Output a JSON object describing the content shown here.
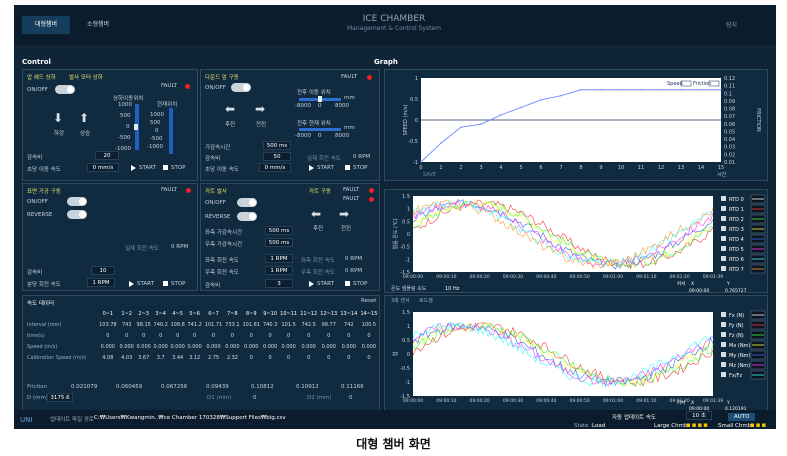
{
  "header": {
    "tabs": [
      "대형챔버",
      "소형챔버"
    ],
    "title": "ICE CHAMBER",
    "subtitle": "Management & Control System",
    "right": "탐지"
  },
  "sections": {
    "control": "Control",
    "graph": "Graph"
  },
  "p1": {
    "title_a": "압 헤드 상하",
    "title_b": "발사 모터 상하",
    "onoff": "ON/OFF",
    "fault": "FAULT",
    "bar_a": "상하이동위치",
    "bar_b": "현재위치",
    "ticks": [
      "1000",
      "500",
      "0",
      "-500",
      "-1000"
    ],
    "ticks_b": [
      "1000",
      "500",
      "0",
      "-500",
      "-1000"
    ],
    "down": "하강",
    "up": "상승",
    "accel_l": "감속비",
    "accel_v": "20",
    "speed_l": "초당 이동 속도",
    "speed_v": "0 mm/s",
    "start": "START",
    "stop": "STOP"
  },
  "p2": {
    "title": "다운드 암 구동",
    "onoff": "ON/OFF",
    "fault": "FAULT",
    "back": "후진",
    "fwd": "전진",
    "pos_l": "전후 이동 위치",
    "pos_ticks": [
      "-8000",
      "0",
      "8000"
    ],
    "unit": "mm",
    "cur_l": "전후 현재 위치",
    "cur_ticks": [
      "-8000",
      "0",
      "8000"
    ],
    "acc_l": "가감속시간",
    "acc_v": "500 ms",
    "ratio_l": "감속비",
    "ratio_v": "50",
    "speed_l": "초당 이동 속도",
    "speed_v": "0 mm/s",
    "rot_l": "실제 회전 속도",
    "rot_v": "0 RPM",
    "start": "START",
    "stop": "STOP"
  },
  "p3": {
    "title": "표면 가공 구동",
    "fault": "FAULT",
    "onoff": "ON/OFF",
    "reverse": "REVERSE",
    "real_l": "실제 회전 속도",
    "real_v": "0 RPM",
    "ratio_l": "감속비",
    "ratio_v": "10",
    "rpm_l": "분당 회전 속도",
    "rpm_v": "1 RPM",
    "start": "START",
    "stop": "STOP"
  },
  "p4": {
    "title": "카트 발사",
    "title2": "카트 구동",
    "fault1": "FAULT",
    "fault2": "FAULT",
    "onoff": "ON/OFF",
    "reverse": "REVERSE",
    "l_acc_l": "좌측 가감속시간",
    "l_acc_v": "500 ms",
    "r_acc_l": "우측 가감속시간",
    "r_acc_v": "500 ms",
    "back": "후진",
    "fwd": "전진",
    "l_rpm_l": "좌측 회전 속도",
    "l_rpm_v": "1 RPM",
    "l_real_l": "좌측 회전 속도",
    "l_real_v": "0 RPM",
    "r_rpm_l": "우측 회전 속도",
    "r_rpm_v": "1 RPM",
    "r_real_l": "우측 회전 속도",
    "r_real_v": "0 RPM",
    "ratio_l": "감속비",
    "ratio_v": "3",
    "start": "START",
    "stop": "STOP"
  },
  "speedtbl": {
    "title": "속도 데이터",
    "reset": "Reset",
    "cols": [
      "0~1",
      "1~2",
      "2~3",
      "3~4",
      "4~5",
      "5~6",
      "6~7",
      "7~8",
      "8~9",
      "9~10",
      "10~11",
      "11~12",
      "12~13",
      "13~14",
      "14~15"
    ],
    "rows": [
      {
        "label": "Interval (mm)",
        "values": [
          "103.78",
          "743",
          "98.15",
          "740.2",
          "108.8",
          "741.2",
          "101.71",
          "733.1",
          "101.81",
          "740.3",
          "101.5",
          "742.5",
          "99.77",
          "742",
          "100.5"
        ]
      },
      {
        "label": "time(s)",
        "values": [
          "0",
          "0",
          "0",
          "0",
          "0",
          "0",
          "0",
          "0",
          "0",
          "0",
          "0",
          "0",
          "0",
          "0",
          "0"
        ]
      },
      {
        "label": "Speed (m/s)",
        "values": [
          "0.000",
          "0.000",
          "0.000",
          "0.000",
          "0.000",
          "0.000",
          "0.000",
          "0.000",
          "0.000",
          "0.000",
          "0.000",
          "0.000",
          "0.000",
          "0.000",
          "0.000"
        ]
      },
      {
        "label": "Calibration Speed (m/s)",
        "values": [
          "4.08",
          "4.03",
          "3.67",
          "3.7",
          "3.44",
          "3.12",
          "2.75",
          "2.32",
          "0",
          "0",
          "0",
          "0",
          "0",
          "0",
          "0"
        ]
      }
    ],
    "friction_l": "Friction",
    "friction": [
      "0.021079",
      "0.060459",
      "0.067256",
      "0.09439",
      "0.10812",
      "0.10912",
      "0.11166"
    ],
    "d_l": "D (mm)",
    "d_v": "3175.6",
    "d1_l": "D1 (mm)",
    "d1_v": "0",
    "d2_l": "D2 (mm)",
    "d2_v": "0"
  },
  "path": {
    "label": "업데이트 파일 경로",
    "value": "C:₩Users₩Kwangmin..₩ce Chamber 170328₩Support Files₩big.csv"
  },
  "auto": {
    "label": "자동 업데이트 속도",
    "value": "10 초",
    "btn": "AUTO"
  },
  "status": {
    "state_l": "State :",
    "state_v": "Load",
    "large": "Large Chmbr",
    "small": "Small Chmbr",
    "logo": "UNI"
  },
  "g1": {
    "ylabel": "SPEED (m/s)",
    "y2label": "FRICTION",
    "xlabel": "시간",
    "yticks": [
      "1",
      "0.5",
      "0",
      "-0.5",
      "-1"
    ],
    "y2ticks": [
      "0.12",
      "0.11",
      "0.1",
      "0.09",
      "0.08",
      "0.07",
      "0.06",
      "0.05",
      "0.04",
      "0.03",
      "0.02",
      "0.01"
    ],
    "xticks": [
      "0",
      "1",
      "2",
      "3",
      "4",
      "5",
      "6",
      "7",
      "8",
      "9",
      "10",
      "11",
      "12",
      "13",
      "14",
      "15"
    ],
    "legend": [
      "Speed",
      "Friction"
    ],
    "save": "SAVE"
  },
  "g2": {
    "ylabel": "얼음 온도 (℃)",
    "yticks": [
      "1.5",
      "1",
      "0.5",
      "0",
      "-0.5",
      "-1",
      "-1.5"
    ],
    "xticks": [
      "09:00:00",
      "09:00:10",
      "09:00:20",
      "09:00:30",
      "09:00:40",
      "09:00:50",
      "09:01:00",
      "09:01:10",
      "09:01:20",
      "09:01:39"
    ],
    "legend": [
      "RTD 0",
      "RTD 1",
      "RTD 2",
      "RTD 3",
      "RTD 4",
      "RTD 5",
      "RTD 6",
      "RTD 7"
    ],
    "cursor": {
      "c": "커서",
      "x": "X",
      "y": "Y",
      "xv": "09:00:00",
      "yv": "0.765727"
    },
    "rate_l": "온도 샘플링 속도",
    "rate_v": "10 Hz"
  },
  "g3": {
    "hdr_a": "3축 센서",
    "hdr_b": "로드셀",
    "ylabel": "힘",
    "yticks": [
      "1.5",
      "1",
      "0.5",
      "0",
      "-0.5",
      "-1",
      "-1.5"
    ],
    "xticks": [
      "09:00:00",
      "09:00:10",
      "09:00:20",
      "09:00:30",
      "09:00:40",
      "09:00:50",
      "09:01:00",
      "09:01:10",
      "09:01:20",
      "09:01:39"
    ],
    "legend": [
      "Fx (N)",
      "Fy (N)",
      "Fz (N)",
      "Mx (Nm)",
      "My (Nm)",
      "Mz (Nm)",
      "Fx/Fz"
    ],
    "cursor": {
      "c": "커서",
      "x": "X",
      "y": "Y",
      "xv": "09:00:00",
      "yv": "0.120191"
    }
  },
  "chart_data": [
    {
      "type": "line",
      "series": [
        {
          "name": "Speed",
          "x": [
            0,
            1,
            2,
            3,
            4,
            5,
            6,
            7,
            8,
            9,
            10,
            11,
            12,
            13,
            14,
            15
          ],
          "y": [
            -1,
            -0.55,
            -0.17,
            -0.1,
            0.12,
            0.3,
            0.48,
            0.58,
            0.72,
            0.72,
            0.72,
            0.72,
            0.72,
            0.72,
            0.72,
            0.72
          ]
        },
        {
          "name": "Friction",
          "x": [],
          "y": []
        }
      ],
      "xlabel": "시간",
      "ylabel": "SPEED (m/s)",
      "xlim": [
        0,
        15
      ],
      "ylim": [
        -1,
        1
      ]
    },
    {
      "type": "line",
      "xlabel": "",
      "ylabel": "얼음 온도 (℃)",
      "ylim": [
        -1.5,
        1.5
      ],
      "series": [
        {
          "name": "RTD 0"
        },
        {
          "name": "RTD 1"
        },
        {
          "name": "RTD 2"
        },
        {
          "name": "RTD 3"
        },
        {
          "name": "RTD 4"
        },
        {
          "name": "RTD 5"
        },
        {
          "name": "RTD 6"
        },
        {
          "name": "RTD 7"
        }
      ]
    },
    {
      "type": "line",
      "xlabel": "",
      "ylabel": "힘",
      "ylim": [
        -1.5,
        1.5
      ],
      "series": [
        {
          "name": "Fx (N)"
        },
        {
          "name": "Fy (N)"
        },
        {
          "name": "Fz (N)"
        },
        {
          "name": "Mx (Nm)"
        },
        {
          "name": "My (Nm)"
        },
        {
          "name": "Mz (Nm)"
        },
        {
          "name": "Fx/Fz"
        }
      ]
    }
  ],
  "colors": {
    "rtd": [
      "#ffffff",
      "#ff3b3b",
      "#3bff3b",
      "#ffff3b",
      "#3b6bff",
      "#ff3bff",
      "#3bffff",
      "#ff9b3b"
    ],
    "force": [
      "#ffffff",
      "#ff3b3b",
      "#3bff3b",
      "#ffff3b",
      "#3b6bff",
      "#ff3bff",
      "#3bffff"
    ],
    "speed": "#6f8cff"
  },
  "caption": "대형 챔버 화면"
}
